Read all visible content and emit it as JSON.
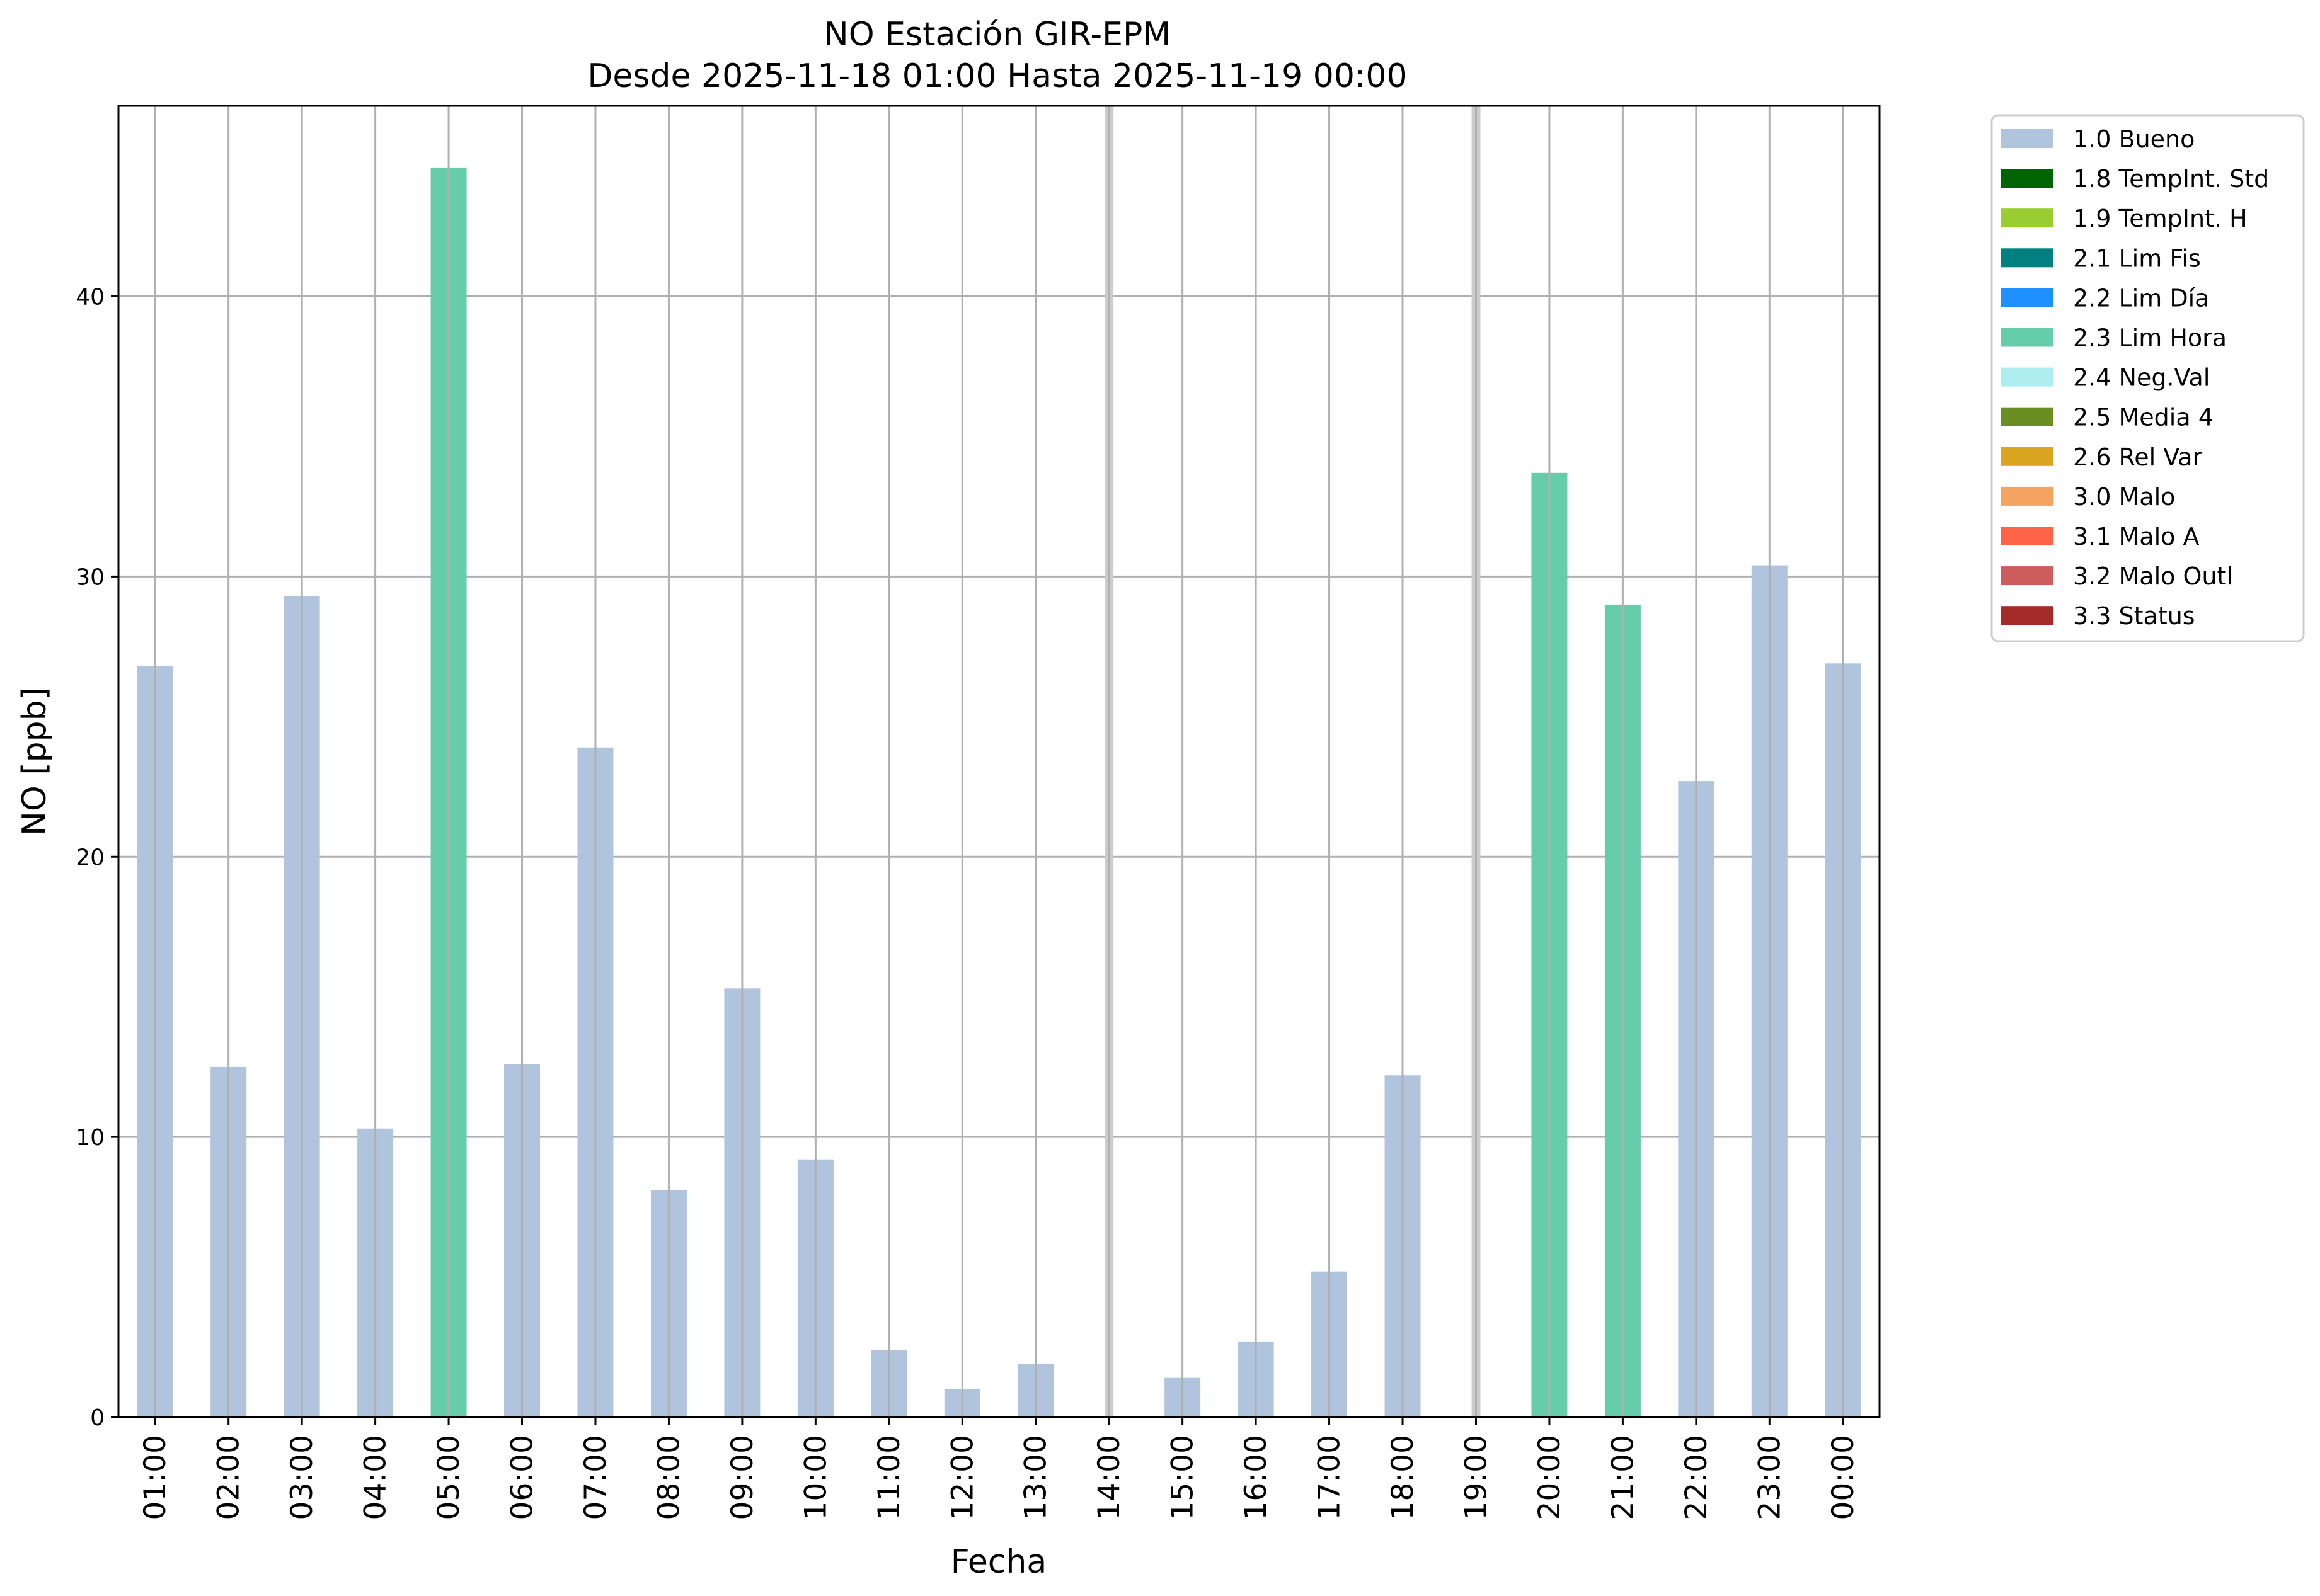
{
  "chart_data": {
    "type": "bar",
    "title": "NO Estación GIR-EPM",
    "subtitle": "Desde 2025-11-18 01:00 Hasta 2025-11-19 00:00",
    "xlabel": "Fecha",
    "ylabel": "NO [ppb]",
    "ylim": [
      0,
      46.8
    ],
    "yticks": [
      0,
      10,
      20,
      30,
      40
    ],
    "grid": true,
    "legend_position": "outside-top-right",
    "categories": [
      "01:00",
      "02:00",
      "03:00",
      "04:00",
      "05:00",
      "06:00",
      "07:00",
      "08:00",
      "09:00",
      "10:00",
      "11:00",
      "12:00",
      "13:00",
      "14:00",
      "15:00",
      "16:00",
      "17:00",
      "18:00",
      "19:00",
      "20:00",
      "21:00",
      "22:00",
      "23:00",
      "00:00"
    ],
    "values": [
      26.8,
      12.5,
      29.3,
      10.3,
      44.6,
      12.6,
      23.9,
      8.1,
      15.3,
      9.2,
      2.4,
      1.0,
      1.9,
      null,
      1.4,
      2.7,
      5.2,
      12.2,
      null,
      33.7,
      29.0,
      22.7,
      30.4,
      26.9
    ],
    "flags": [
      "1.0 Bueno",
      "1.0 Bueno",
      "1.0 Bueno",
      "1.0 Bueno",
      "2.3 Lim Hora",
      "1.0 Bueno",
      "1.0 Bueno",
      "1.0 Bueno",
      "1.0 Bueno",
      "1.0 Bueno",
      "1.0 Bueno",
      "1.0 Bueno",
      "1.0 Bueno",
      null,
      "1.0 Bueno",
      "1.0 Bueno",
      "1.0 Bueno",
      "1.0 Bueno",
      null,
      "2.3 Lim Hora",
      "2.3 Lim Hora",
      "1.0 Bueno",
      "1.0 Bueno",
      "1.0 Bueno"
    ],
    "missing_markers": [
      "14:00",
      "19:00"
    ],
    "legend": [
      {
        "label": "1.0 Bueno",
        "color": "#b0c4de"
      },
      {
        "label": "1.8 TempInt. Std",
        "color": "#006400"
      },
      {
        "label": "1.9 TempInt. H",
        "color": "#9acd32"
      },
      {
        "label": "2.1 Lim Fis",
        "color": "#008080"
      },
      {
        "label": "2.2 Lim Día",
        "color": "#1e90ff"
      },
      {
        "label": "2.3 Lim Hora",
        "color": "#66cdaa"
      },
      {
        "label": "2.4 Neg.Val",
        "color": "#afeeee"
      },
      {
        "label": "2.5 Media 4",
        "color": "#6b8e23"
      },
      {
        "label": "2.6 Rel Var",
        "color": "#daa520"
      },
      {
        "label": "3.0 Malo",
        "color": "#f4a460"
      },
      {
        "label": "3.1 Malo A",
        "color": "#ff6347"
      },
      {
        "label": "3.2 Malo Outl",
        "color": "#cd5c5c"
      },
      {
        "label": "3.3 Status",
        "color": "#a52a2a"
      }
    ],
    "colors": {
      "grid": "#b0b0b0",
      "missing": "#cccccc"
    }
  }
}
